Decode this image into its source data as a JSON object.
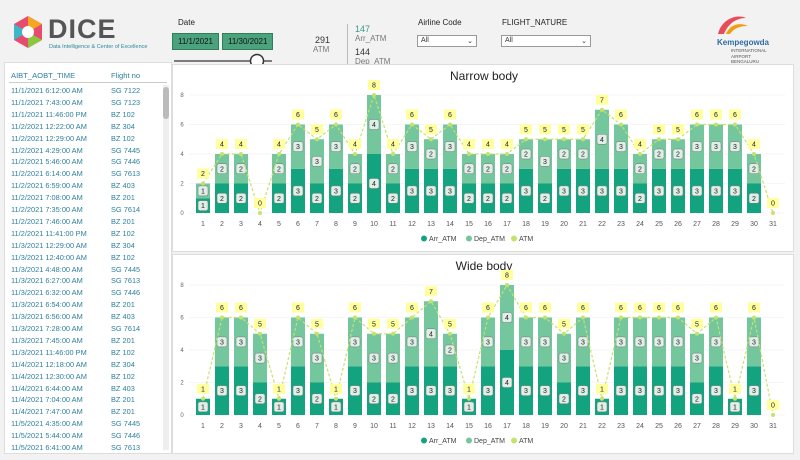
{
  "header": {
    "logo": "DICE",
    "logo_subtitle": "Data Intelligence & Center of Excellence",
    "airport_name": "Kempegowda",
    "airport_subtitle": "INTERNATIONAL AIRPORT BENGALURU"
  },
  "filters": {
    "date_label": "Date",
    "date_start": "11/1/2021",
    "date_end": "11/30/2021",
    "airline_label": "Airline Code",
    "airline_value": "All",
    "nature_label": "FLIGHT_NATURE",
    "nature_value": "All"
  },
  "kpis": [
    {
      "value": 291,
      "label": "ATM"
    },
    {
      "value": 147,
      "label": "Arr_ATM"
    },
    {
      "value": 144,
      "label": "Dep_ATM"
    }
  ],
  "table": {
    "columns": [
      "AIBT_AOBT_TIME",
      "Flight no"
    ],
    "rows": [
      [
        "11/1/2021 6:12:00 AM",
        "SG 7122"
      ],
      [
        "11/1/2021 7:43:00 AM",
        "SG 7123"
      ],
      [
        "11/1/2021 11:46:00 PM",
        "BZ 102"
      ],
      [
        "11/2/2021 12:22:00 AM",
        "BZ 304"
      ],
      [
        "11/2/2021 12:29:00 AM",
        "BZ 102"
      ],
      [
        "11/2/2021 4:29:00 AM",
        "SG 7445"
      ],
      [
        "11/2/2021 5:46:00 AM",
        "SG 7446"
      ],
      [
        "11/2/2021 6:14:00 AM",
        "SG 7613"
      ],
      [
        "11/2/2021 6:59:00 AM",
        "BZ 403"
      ],
      [
        "11/2/2021 7:08:00 AM",
        "BZ 201"
      ],
      [
        "11/2/2021 7:35:00 AM",
        "SG 7614"
      ],
      [
        "11/2/2021 7:46:00 AM",
        "BZ 201"
      ],
      [
        "11/2/2021 11:41:00 PM",
        "BZ 102"
      ],
      [
        "11/3/2021 12:29:00 AM",
        "BZ 304"
      ],
      [
        "11/3/2021 12:40:00 AM",
        "BZ 102"
      ],
      [
        "11/3/2021 4:48:00 AM",
        "SG 7445"
      ],
      [
        "11/3/2021 6:27:00 AM",
        "SG 7613"
      ],
      [
        "11/3/2021 6:32:00 AM",
        "SG 7446"
      ],
      [
        "11/3/2021 6:54:00 AM",
        "BZ 201"
      ],
      [
        "11/3/2021 6:56:00 AM",
        "BZ 403"
      ],
      [
        "11/3/2021 7:28:00 AM",
        "SG 7614"
      ],
      [
        "11/3/2021 7:45:00 AM",
        "BZ 201"
      ],
      [
        "11/3/2021 11:46:00 PM",
        "BZ 102"
      ],
      [
        "11/4/2021 12:18:00 AM",
        "BZ 304"
      ],
      [
        "11/4/2021 12:30:00 AM",
        "BZ 102"
      ],
      [
        "11/4/2021 6:44:00 AM",
        "BZ 403"
      ],
      [
        "11/4/2021 7:04:00 AM",
        "BZ 201"
      ],
      [
        "11/4/2021 7:47:00 AM",
        "BZ 201"
      ],
      [
        "11/5/2021 4:35:00 AM",
        "SG 7445"
      ],
      [
        "11/5/2021 5:44:00 AM",
        "SG 7446"
      ],
      [
        "11/5/2021 6:41:00 AM",
        "SG 7613"
      ]
    ]
  },
  "chart_data": [
    {
      "type": "combo",
      "title": "Narrow body",
      "categories": [
        "1",
        "2",
        "3",
        "4",
        "5",
        "6",
        "7",
        "8",
        "9",
        "10",
        "11",
        "12",
        "13",
        "14",
        "15",
        "16",
        "17",
        "18",
        "19",
        "20",
        "21",
        "22",
        "23",
        "24",
        "25",
        "26",
        "27",
        "28",
        "29",
        "30",
        "31"
      ],
      "series": [
        {
          "name": "Arr_ATM",
          "color": "#14a37f",
          "values": [
            1,
            2,
            2,
            null,
            2,
            3,
            2,
            3,
            2,
            4,
            2,
            3,
            3,
            3,
            2,
            2,
            2,
            3,
            2,
            3,
            3,
            3,
            3,
            2,
            3,
            3,
            3,
            3,
            3,
            2,
            null
          ]
        },
        {
          "name": "Dep_ATM",
          "color": "#74c69d",
          "values": [
            1,
            2,
            2,
            null,
            2,
            3,
            3,
            3,
            2,
            4,
            2,
            3,
            2,
            3,
            2,
            2,
            2,
            2,
            3,
            2,
            2,
            4,
            3,
            2,
            2,
            2,
            3,
            3,
            3,
            2,
            null
          ]
        },
        {
          "name": "ATM",
          "type": "line",
          "color": "#c5e26d",
          "values": [
            2,
            4,
            4,
            0,
            4,
            6,
            5,
            6,
            4,
            8,
            4,
            6,
            5,
            6,
            4,
            4,
            4,
            5,
            5,
            5,
            5,
            7,
            6,
            4,
            5,
            5,
            6,
            6,
            6,
            4,
            0
          ]
        }
      ],
      "ylim": [
        0,
        8
      ],
      "yticks": [
        0,
        2,
        4,
        6,
        8
      ],
      "grid": true,
      "stacked": true,
      "legend": "bottom"
    },
    {
      "type": "combo",
      "title": "Wide body",
      "categories": [
        "1",
        "2",
        "3",
        "4",
        "5",
        "6",
        "7",
        "8",
        "9",
        "10",
        "11",
        "12",
        "13",
        "14",
        "15",
        "16",
        "17",
        "18",
        "19",
        "20",
        "21",
        "22",
        "23",
        "24",
        "25",
        "26",
        "27",
        "28",
        "29",
        "30",
        "31"
      ],
      "series": [
        {
          "name": "Arr_ATM",
          "color": "#14a37f",
          "values": [
            1,
            3,
            3,
            2,
            1,
            3,
            2,
            1,
            3,
            2,
            2,
            3,
            3,
            3,
            1,
            3,
            4,
            3,
            3,
            2,
            3,
            1,
            3,
            3,
            3,
            3,
            2,
            3,
            1,
            3,
            null
          ]
        },
        {
          "name": "Dep_ATM",
          "color": "#74c69d",
          "values": [
            null,
            3,
            3,
            3,
            null,
            3,
            3,
            null,
            3,
            3,
            3,
            3,
            4,
            2,
            null,
            3,
            4,
            3,
            3,
            3,
            3,
            null,
            3,
            3,
            3,
            3,
            3,
            3,
            null,
            3,
            null
          ]
        },
        {
          "name": "ATM",
          "type": "line",
          "color": "#c5e26d",
          "values": [
            1,
            6,
            6,
            5,
            1,
            6,
            5,
            1,
            6,
            5,
            5,
            6,
            7,
            5,
            1,
            6,
            8,
            6,
            6,
            5,
            6,
            1,
            6,
            6,
            6,
            6,
            5,
            6,
            1,
            6,
            0
          ]
        }
      ],
      "ylim": [
        0,
        8
      ],
      "yticks": [
        0,
        2,
        4,
        6,
        8
      ],
      "grid": true,
      "stacked": true,
      "legend": "bottom"
    }
  ]
}
